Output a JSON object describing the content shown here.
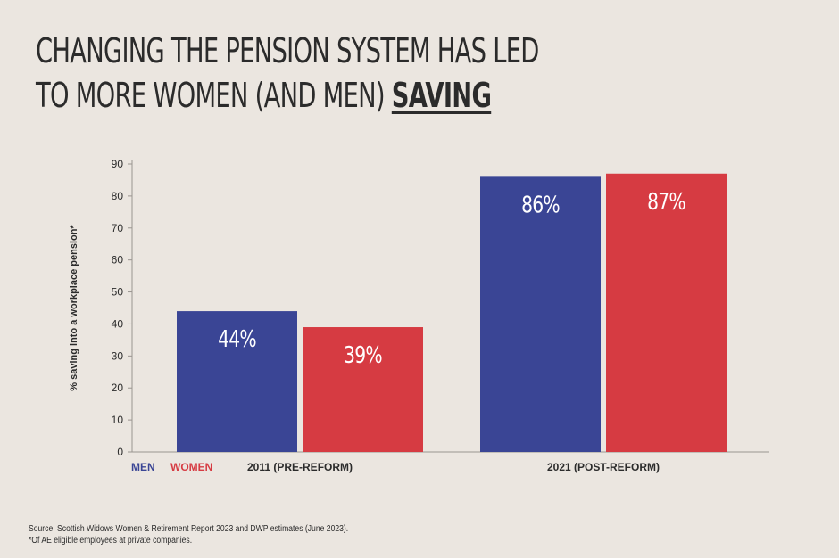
{
  "title": {
    "line1": "CHANGING THE PENSION SYSTEM HAS LED",
    "line2_prefix": "TO MORE WOMEN (AND MEN) ",
    "line2_emphasis": "SAVING"
  },
  "footer": {
    "source": "Source: Scottish Widows Women & Retirement Report 2023 and DWP estimates (June 2023).",
    "note": "*Of AE eligible employees at private companies."
  },
  "colors": {
    "men": "#3a4595",
    "women": "#d63b42",
    "background": "#ebe6e0",
    "text": "#2b2b2b"
  },
  "chart_data": {
    "type": "bar",
    "categories": [
      "2011 (PRE-REFORM)",
      "2021 (POST-REFORM)"
    ],
    "series": [
      {
        "name": "MEN",
        "values": [
          44,
          86
        ],
        "labels": [
          "44%",
          "86%"
        ]
      },
      {
        "name": "WOMEN",
        "values": [
          39,
          87
        ],
        "labels": [
          "39%",
          "87%"
        ]
      }
    ],
    "ylabel": "% saving into a workplace pension*",
    "ylim": [
      0,
      90
    ],
    "yticks": [
      0,
      10,
      20,
      30,
      40,
      50,
      60,
      70,
      80,
      90
    ],
    "legend_position": "bottom-left",
    "grid": false
  }
}
